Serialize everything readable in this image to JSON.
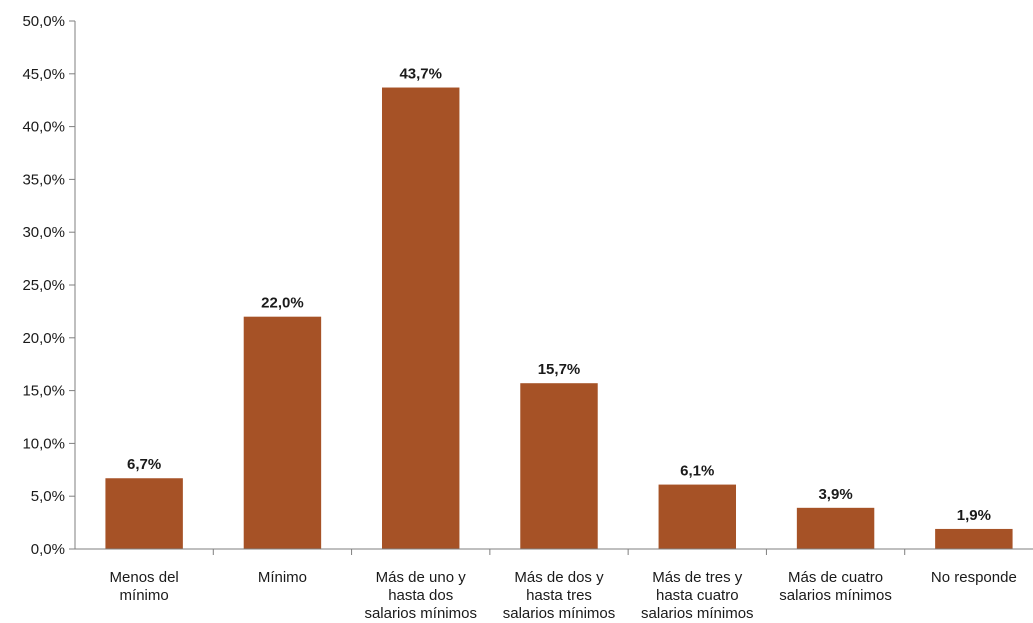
{
  "chart_data": {
    "type": "bar",
    "title": "",
    "xlabel": "",
    "ylabel": "",
    "ylim": [
      0,
      50
    ],
    "yticks": [
      "0,0%",
      "5,0%",
      "10,0%",
      "15,0%",
      "20,0%",
      "25,0%",
      "30,0%",
      "35,0%",
      "40,0%",
      "45,0%",
      "50,0%"
    ],
    "grid": false,
    "legend": "none",
    "bar_color": "#A65226",
    "categories": [
      [
        "Menos del",
        "mínimo"
      ],
      [
        "Mínimo"
      ],
      [
        "Más de uno y",
        "hasta dos",
        "salarios mínimos"
      ],
      [
        "Más de dos y",
        "hasta tres",
        "salarios mínimos"
      ],
      [
        "Más de tres y",
        "hasta cuatro",
        "salarios mínimos"
      ],
      [
        "Más de cuatro",
        "salarios mínimos"
      ],
      [
        "No responde"
      ]
    ],
    "values": [
      6.7,
      22.0,
      43.7,
      15.7,
      6.1,
      3.9,
      1.9
    ],
    "data_labels": [
      "6,7%",
      "22,0%",
      "43,7%",
      "15,7%",
      "6,1%",
      "3,9%",
      "1,9%"
    ]
  }
}
